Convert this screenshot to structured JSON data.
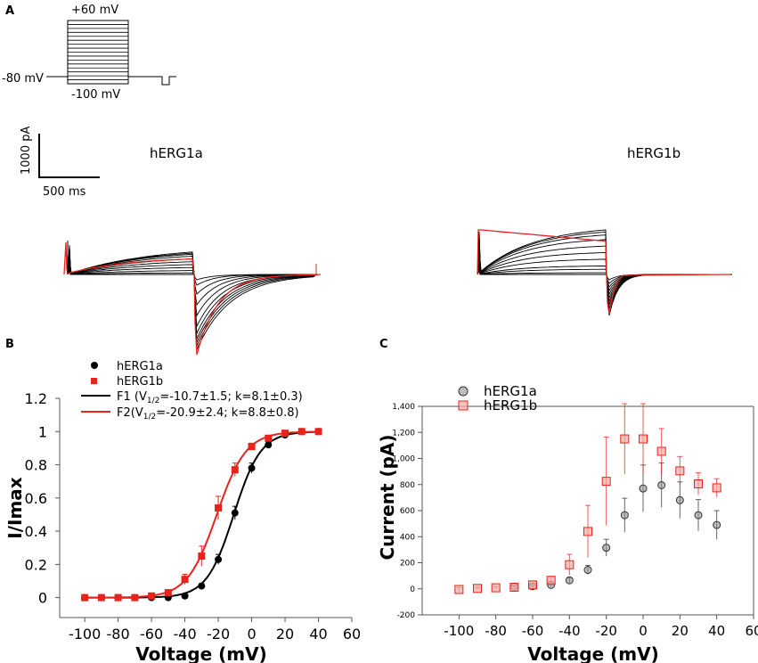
{
  "panels": {
    "a": "A",
    "b": "B",
    "c": "C"
  },
  "protocol": {
    "top_label": "+60 mV",
    "hold_label": "-80 mV",
    "bottom_label": "-100 mV"
  },
  "scale_bar": {
    "current_label": "1000 pA",
    "time_label": "500 ms"
  },
  "trace_titles": {
    "left": "hERG1a",
    "right": "hERG1b"
  },
  "colors": {
    "hERG1a": "#000000",
    "hERG1b": "#e8231c",
    "hERG1b_light": "#f4a9a7"
  },
  "chart_data": [
    {
      "id": "B",
      "type": "scatter",
      "xlabel": "Voltage (mV)",
      "ylabel": "I/Imax",
      "xlim": [
        -115,
        60
      ],
      "ylim": [
        -0.12,
        1.2
      ],
      "xticks": [
        -100,
        -80,
        -60,
        -40,
        -20,
        0,
        20,
        40,
        60
      ],
      "xtick_labels": [
        "-100",
        "-80",
        "-60",
        "-40",
        "-20",
        "0",
        "20",
        "40",
        "60"
      ],
      "yticks": [
        0,
        0.2,
        0.4,
        0.6,
        0.8,
        1,
        1.2
      ],
      "ytick_labels": [
        "0",
        "0.2",
        "0.4",
        "0.6",
        "0.8",
        "1",
        "1.2"
      ],
      "legend": {
        "series_a": "hERG1a",
        "series_b": "hERG1b",
        "fit_1": "F1 (V",
        "fit_1_sub": "1/2",
        "fit_1_rest": "=-10.7±1.5; k=8.1±0.3)",
        "fit_2": "F2(V",
        "fit_2_sub": "1/2",
        "fit_2_rest": "=-20.9±2.4; k=8.8±0.8)"
      },
      "x": [
        -100,
        -90,
        -80,
        -70,
        -60,
        -50,
        -40,
        -30,
        -20,
        -10,
        0,
        10,
        20,
        30,
        40
      ],
      "series": [
        {
          "name": "hERG1a",
          "marker": "circle",
          "values": [
            0,
            0,
            0,
            0,
            0,
            0,
            0.01,
            0.07,
            0.23,
            0.51,
            0.78,
            0.92,
            0.98,
            1.0,
            1.0
          ],
          "errors": [
            0,
            0,
            0,
            0,
            0,
            0,
            0.01,
            0.015,
            0.03,
            0.04,
            0.03,
            0.02,
            0.01,
            0.005,
            0
          ]
        },
        {
          "name": "hERG1b",
          "marker": "square",
          "values": [
            0,
            0,
            0,
            0,
            0.01,
            0.03,
            0.11,
            0.25,
            0.54,
            0.77,
            0.91,
            0.96,
            0.99,
            1.0,
            1.0
          ],
          "errors": [
            0,
            0,
            0,
            0,
            0.01,
            0.015,
            0.03,
            0.06,
            0.07,
            0.04,
            0.02,
            0.015,
            0.01,
            0.005,
            0
          ]
        }
      ],
      "fits": [
        {
          "name": "F1",
          "v_half": -10.7,
          "k": 8.1
        },
        {
          "name": "F2",
          "v_half": -20.9,
          "k": 8.8
        }
      ]
    },
    {
      "id": "C",
      "type": "scatter",
      "xlabel": "Voltage (mV)",
      "ylabel": "Current (pA)",
      "xlim": [
        -120,
        60
      ],
      "ylim": [
        -200,
        1400
      ],
      "xticks": [
        -100,
        -80,
        -60,
        -40,
        -20,
        0,
        20,
        40,
        60
      ],
      "xtick_labels": [
        "-100",
        "-80",
        "-60",
        "-40",
        "-20",
        "0",
        "20",
        "40",
        "60"
      ],
      "yticks": [
        -200,
        0,
        200,
        400,
        600,
        800,
        1000,
        1200,
        1400
      ],
      "ytick_labels": [
        "-200",
        "0",
        "200",
        "400",
        "600",
        "800",
        "1,000",
        "1,200",
        "1,400"
      ],
      "legend": {
        "series_a": "hERG1a",
        "series_b": "hERG1b"
      },
      "x": [
        -100,
        -90,
        -80,
        -70,
        -60,
        -50,
        -40,
        -30,
        -20,
        -10,
        0,
        10,
        20,
        30,
        40
      ],
      "series": [
        {
          "name": "hERG1a",
          "marker": "circle",
          "values": [
            null,
            null,
            null,
            15,
            20,
            30,
            65,
            145,
            315,
            565,
            770,
            795,
            680,
            565,
            490
          ],
          "errors": [
            null,
            null,
            null,
            10,
            10,
            15,
            20,
            35,
            65,
            130,
            180,
            170,
            140,
            120,
            110
          ]
        },
        {
          "name": "hERG1b",
          "marker": "square",
          "values": [
            -5,
            3,
            8,
            12,
            30,
            65,
            185,
            440,
            825,
            1150,
            1150,
            1055,
            905,
            805,
            775
          ],
          "errors": [
            15,
            10,
            10,
            10,
            15,
            30,
            80,
            200,
            340,
            270,
            270,
            175,
            110,
            85,
            70
          ]
        }
      ]
    }
  ]
}
